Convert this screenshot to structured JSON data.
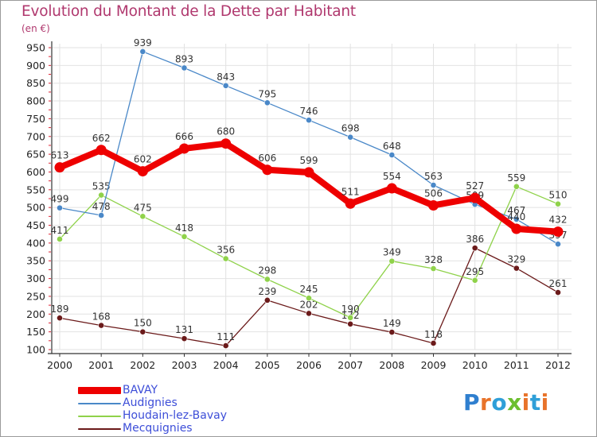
{
  "title": "Evolution du Montant de la Dette par Habitant",
  "unit_label": "(en €)",
  "chart_data": {
    "type": "line",
    "title": "Evolution du Montant de la Dette par Habitant",
    "ylabel": "(en €)",
    "x": [
      "2000",
      "2001",
      "2002",
      "2003",
      "2004",
      "2005",
      "2006",
      "2007",
      "2008",
      "2009",
      "2010",
      "2011",
      "2012"
    ],
    "ylim": [
      100,
      950
    ],
    "yticks": [
      100,
      150,
      200,
      250,
      300,
      350,
      400,
      450,
      500,
      550,
      600,
      650,
      700,
      750,
      800,
      850,
      900,
      950
    ],
    "grid": true,
    "legend_position": "bottom-left",
    "series": [
      {
        "name": "BAVAY",
        "color": "#ee0000",
        "values": [
          613,
          662,
          602,
          666,
          680,
          606,
          599,
          511,
          554,
          506,
          527,
          440,
          432
        ],
        "labels": [
          "613",
          "662",
          "602",
          "666",
          "680",
          "606",
          "599",
          "511",
          "554",
          "506",
          "527",
          "440",
          "432"
        ]
      },
      {
        "name": "Audignies",
        "color": "#4a88c8",
        "values": [
          499,
          478,
          939,
          893,
          843,
          795,
          746,
          698,
          648,
          563,
          509,
          467,
          397
        ],
        "labels": [
          "499",
          "478",
          "939",
          "893",
          "843",
          "795",
          "746",
          "698",
          "648",
          "563",
          "509",
          "467",
          "397"
        ]
      },
      {
        "name": "Houdain-lez-Bavay",
        "color": "#8fd24a",
        "values": [
          411,
          535,
          475,
          418,
          356,
          298,
          245,
          190,
          349,
          328,
          295,
          559,
          510
        ],
        "labels": [
          "411",
          "535",
          "475",
          "418",
          "356",
          "298",
          "245",
          "190",
          "349",
          "328",
          "295",
          "559",
          "510"
        ]
      },
      {
        "name": "Mecquignies",
        "color": "#6b1a1a",
        "values": [
          189,
          168,
          150,
          131,
          111,
          239,
          202,
          172,
          149,
          118,
          386,
          329,
          261
        ],
        "labels": [
          "189",
          "168",
          "150",
          "131",
          "111",
          "239",
          "202",
          "172",
          "149",
          "118",
          "386",
          "329",
          "261"
        ]
      }
    ]
  },
  "legend": [
    {
      "label": "BAVAY"
    },
    {
      "label": "Audignies"
    },
    {
      "label": "Houdain-lez-Bavay"
    },
    {
      "label": "Mecquignies"
    }
  ],
  "logo": {
    "letters": [
      "P",
      "r",
      "o",
      "x",
      "i",
      "t",
      "i"
    ],
    "colors": [
      "#2f7fcf",
      "#e8732a",
      "#2f9fd8",
      "#6cbf2f",
      "#e8732a",
      "#2f9fd8",
      "#e8732a"
    ]
  }
}
